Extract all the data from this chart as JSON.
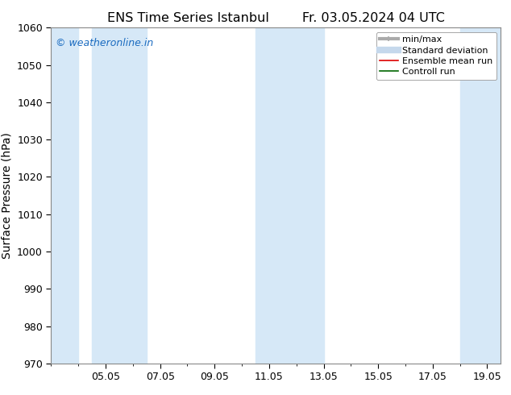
{
  "title": "ENS Time Series Istanbul        Fr. 03.05.2024 04 UTC",
  "ylabel": "Surface Pressure (hPa)",
  "ylim": [
    970,
    1060
  ],
  "yticks": [
    970,
    980,
    990,
    1000,
    1010,
    1020,
    1030,
    1040,
    1050,
    1060
  ],
  "xtick_labels": [
    "05.05",
    "07.05",
    "09.05",
    "11.05",
    "13.05",
    "15.05",
    "17.05",
    "19.05"
  ],
  "xtick_positions": [
    5,
    7,
    9,
    11,
    13,
    15,
    17,
    19
  ],
  "shaded_bands": [
    {
      "x_start": 3.0,
      "x_end": 4.0
    },
    {
      "x_start": 4.5,
      "x_end": 6.5
    },
    {
      "x_start": 10.5,
      "x_end": 13.0
    },
    {
      "x_start": 18.0,
      "x_end": 19.5
    }
  ],
  "band_color": "#d6e8f7",
  "watermark_text": "© weatheronline.in",
  "watermark_color": "#1a6bc0",
  "bg_color": "#ffffff",
  "plot_bg_color": "#ffffff",
  "legend_items": [
    {
      "label": "min/max",
      "color": "#aaaaaa",
      "lw": 3
    },
    {
      "label": "Standard deviation",
      "color": "#c5d8ec",
      "lw": 6
    },
    {
      "label": "Ensemble mean run",
      "color": "#dd0000",
      "lw": 1.2
    },
    {
      "label": "Controll run",
      "color": "#006600",
      "lw": 1.2
    }
  ],
  "x_min": 3.0,
  "x_max": 19.5,
  "title_fontsize": 11.5,
  "tick_fontsize": 9,
  "ylabel_fontsize": 10,
  "watermark_fontsize": 9,
  "legend_fontsize": 8
}
